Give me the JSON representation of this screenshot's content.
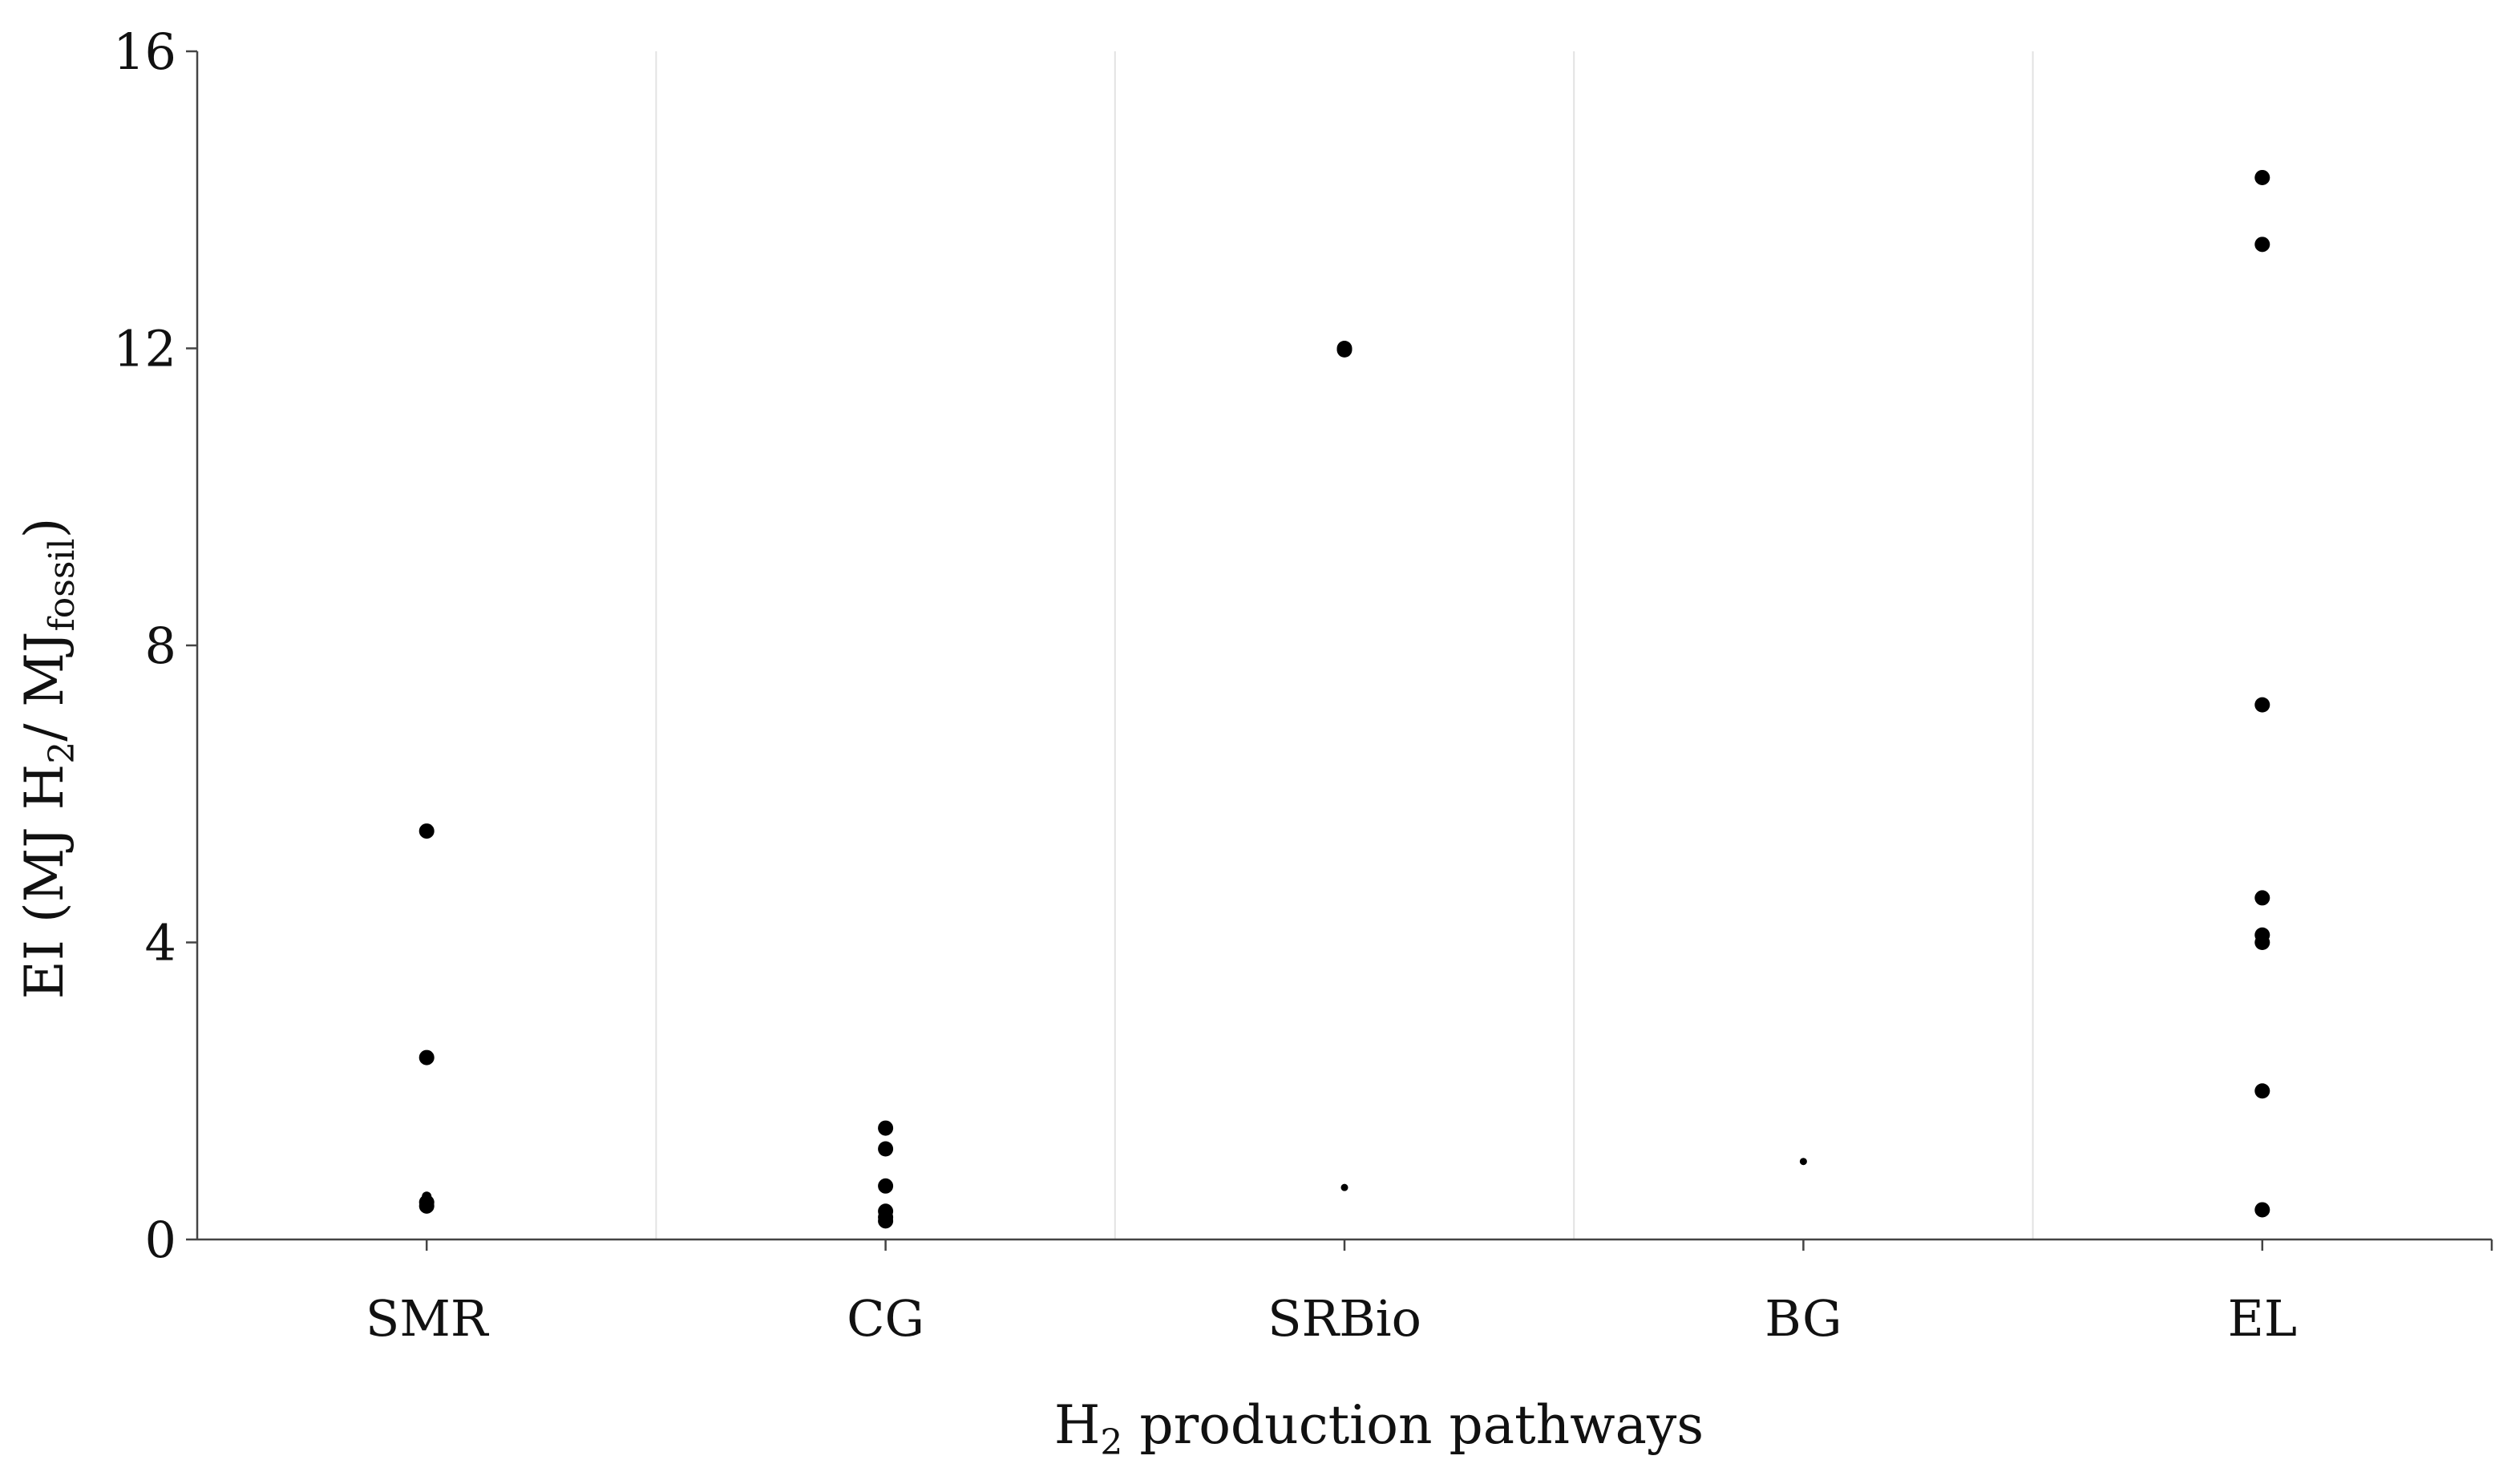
{
  "chart_data": {
    "type": "scatter",
    "xlabel": {
      "prefix": "H",
      "subscript": "2",
      "suffix": " production pathways"
    },
    "ylabel": {
      "part1": "EI (MJ H",
      "sub1": "2",
      "part2": "/ MJ",
      "sub2": "fossil",
      "part3": ")"
    },
    "categories": [
      "SMR",
      "CG",
      "SRBio",
      "BG",
      "EL"
    ],
    "ylim": [
      0,
      16
    ],
    "yticks": [
      0,
      4,
      8,
      12,
      16
    ],
    "ytick_labels": [
      "0",
      "4",
      "8",
      "12",
      "16"
    ],
    "grid": "vertical separators between categories",
    "legend": "none",
    "marker_color": "#000000",
    "points": [
      {
        "category": "SMR",
        "y": 5.5,
        "size": "large"
      },
      {
        "category": "SMR",
        "y": 2.45,
        "size": "large"
      },
      {
        "category": "SMR",
        "y": 0.58,
        "size": "small"
      },
      {
        "category": "SMR",
        "y": 0.5,
        "size": "large"
      },
      {
        "category": "SMR",
        "y": 0.45,
        "size": "large"
      },
      {
        "category": "CG",
        "y": 1.5,
        "size": "large"
      },
      {
        "category": "CG",
        "y": 1.22,
        "size": "large"
      },
      {
        "category": "CG",
        "y": 0.72,
        "size": "large"
      },
      {
        "category": "CG",
        "y": 0.38,
        "size": "large"
      },
      {
        "category": "CG",
        "y": 0.3,
        "size": "large"
      },
      {
        "category": "CG",
        "y": 0.25,
        "size": "large"
      },
      {
        "category": "SRBio",
        "y": 12.0,
        "size": "large"
      },
      {
        "category": "SRBio",
        "y": 11.98,
        "size": "large"
      },
      {
        "category": "SRBio",
        "y": 0.7,
        "size": "tiny"
      },
      {
        "category": "BG",
        "y": 1.05,
        "size": "tiny"
      },
      {
        "category": "EL",
        "y": 14.3,
        "size": "large"
      },
      {
        "category": "EL",
        "y": 13.4,
        "size": "large"
      },
      {
        "category": "EL",
        "y": 7.2,
        "size": "large"
      },
      {
        "category": "EL",
        "y": 4.6,
        "size": "large"
      },
      {
        "category": "EL",
        "y": 4.1,
        "size": "large"
      },
      {
        "category": "EL",
        "y": 4.0,
        "size": "large"
      },
      {
        "category": "EL",
        "y": 2.0,
        "size": "large"
      },
      {
        "category": "EL",
        "y": 0.4,
        "size": "large"
      }
    ]
  }
}
